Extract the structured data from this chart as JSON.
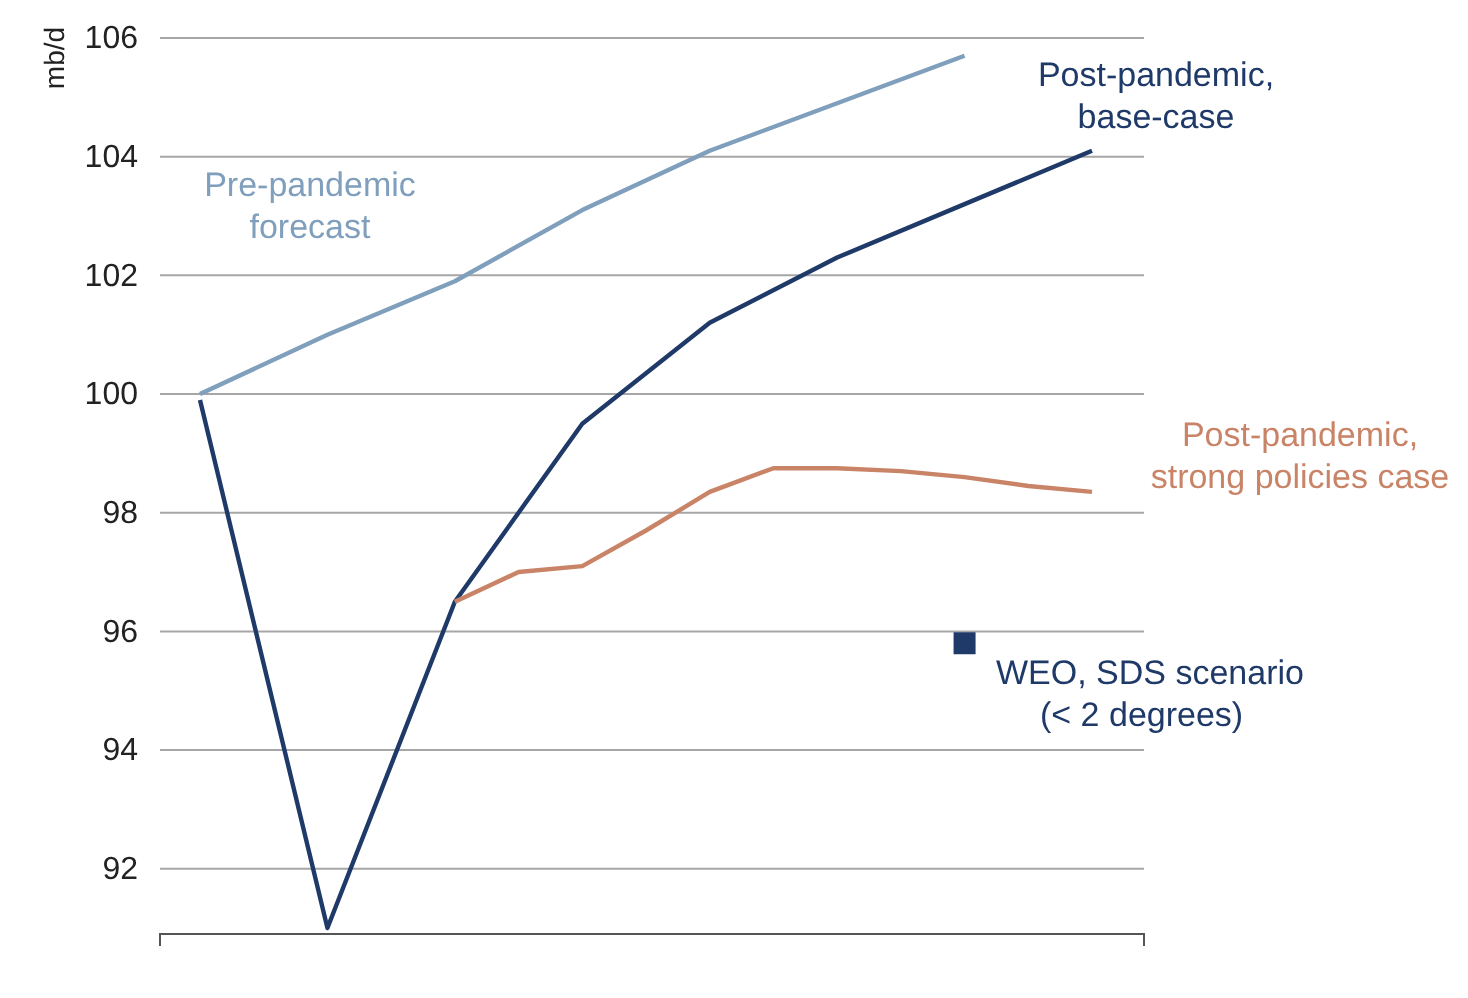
{
  "chart_data": {
    "type": "line",
    "ylabel": "mb/d",
    "categories": [
      null,
      null,
      null,
      null,
      null,
      null,
      null,
      null,
      null,
      null,
      null,
      null,
      null,
      null,
      null
    ],
    "ylim": [
      90.9,
      106
    ],
    "yticks": [
      92,
      94,
      96,
      98,
      100,
      102,
      104,
      106
    ],
    "tick_labels": "y",
    "grid": "y",
    "legend": "right",
    "marker": "none",
    "line_style": "solid",
    "series": [
      {
        "name": "Pre-pandemic forecast",
        "color": "#7f9fbd",
        "values": [
          100.0,
          null,
          101.0,
          null,
          101.9,
          null,
          103.1,
          null,
          104.1,
          null,
          104.9,
          null,
          105.7,
          null,
          null
        ]
      },
      {
        "name": "Post-pandemic, base-case",
        "color": "#1f3a68",
        "values": [
          99.9,
          null,
          91.0,
          null,
          96.5,
          null,
          99.5,
          null,
          101.2,
          null,
          102.3,
          null,
          103.2,
          null,
          104.1
        ]
      },
      {
        "name": "Post-pandemic, strong policies case",
        "color": "#c98468",
        "values": [
          null,
          null,
          null,
          null,
          96.5,
          97.0,
          97.1,
          97.7,
          98.35,
          98.75,
          98.75,
          98.7,
          98.6,
          98.45,
          98.35
        ]
      },
      {
        "name": "WEO, SDS scenario (< 2 degrees)",
        "type": "scatter",
        "marker": "square",
        "color": "#1f3a68",
        "values": [
          null,
          null,
          null,
          null,
          null,
          null,
          null,
          null,
          null,
          null,
          null,
          null,
          95.8,
          null,
          null
        ]
      }
    ]
  }
}
